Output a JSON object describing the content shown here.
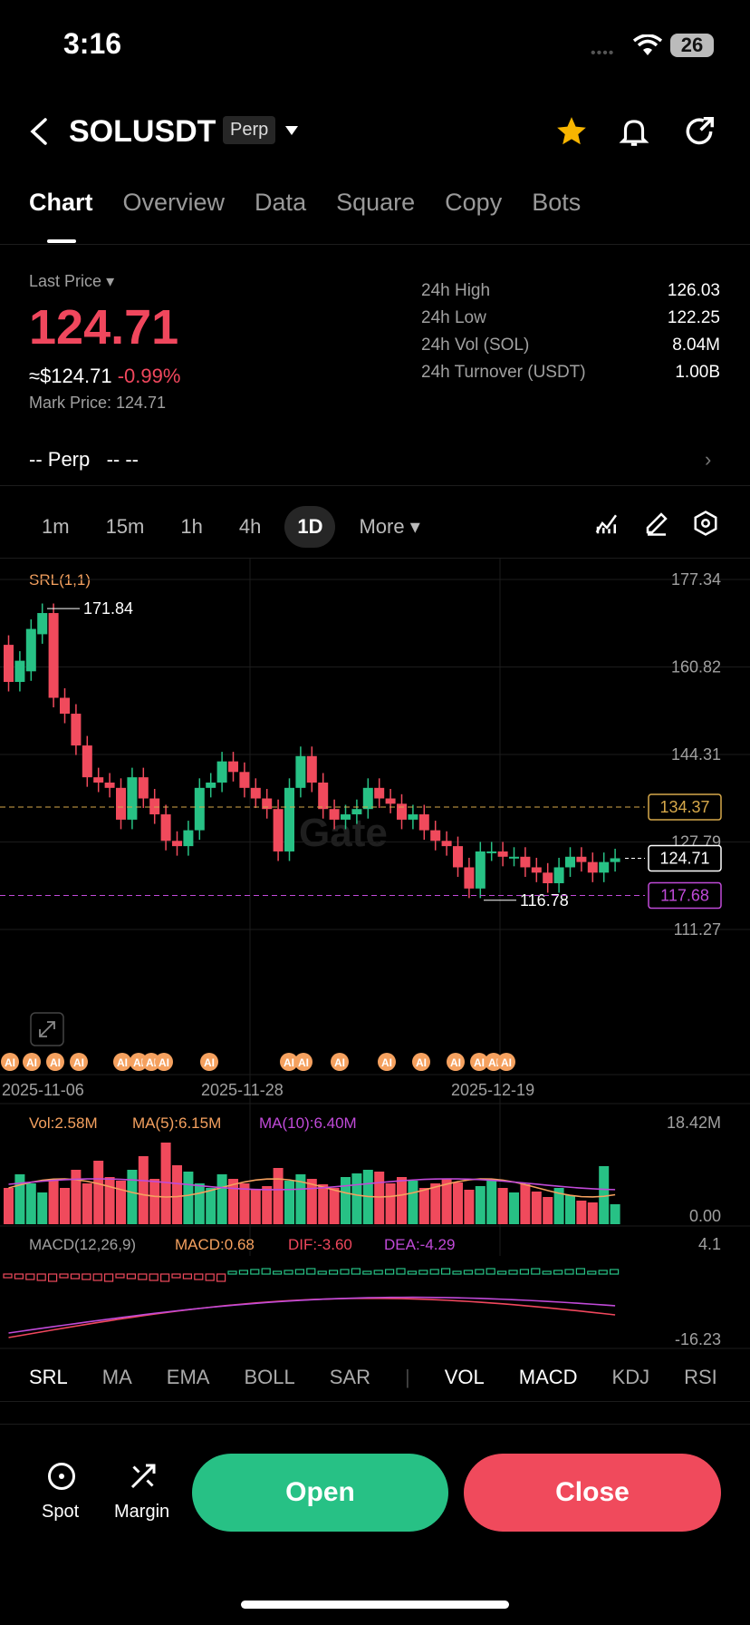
{
  "status": {
    "time": "3:16",
    "battery": "26"
  },
  "header": {
    "symbol": "SOLUSDT",
    "badge": "Perp"
  },
  "tabs": [
    "Chart",
    "Overview",
    "Data",
    "Square",
    "Copy",
    "Bots"
  ],
  "price": {
    "last_label": "Last Price",
    "last": "124.71",
    "usd": "≈$124.71",
    "change": "-0.99%",
    "mark": "Mark Price: 124.71"
  },
  "stats": [
    {
      "label": "24h  High",
      "value": "126.03"
    },
    {
      "label": "24h  Low",
      "value": "122.25"
    },
    {
      "label": "24h  Vol (SOL)",
      "value": "8.04M"
    },
    {
      "label": "24h  Turnover (USDT)",
      "value": "1.00B"
    }
  ],
  "perp_row": {
    "label": "-- Perp",
    "value": "-- --"
  },
  "timeframes": [
    "1m",
    "15m",
    "1h",
    "4h",
    "1D",
    "More"
  ],
  "indicator_label": "SRL(1,1)",
  "watermark": "Gate",
  "y_ticks": [
    "177.34",
    "160.82",
    "144.31",
    "127.79",
    "111.27"
  ],
  "price_markers": {
    "high_label": "171.84",
    "low_label": "116.78",
    "current": "124.71",
    "line1": "134.37",
    "line2": "117.68"
  },
  "date_ticks": [
    "2025-11-06",
    "2025-11-28",
    "2025-12-19"
  ],
  "ai_label": "AI",
  "volume": {
    "vol": "Vol:2.58M",
    "ma5": "MA(5):6.15M",
    "ma10": "MA(10):6.40M",
    "max": "18.42M",
    "min": "0.00"
  },
  "macd": {
    "title": "MACD(12,26,9)",
    "macd": "MACD:0.68",
    "dif": "DIF:-3.60",
    "dea": "DEA:-4.29",
    "max": "4.1",
    "min": "-16.23"
  },
  "bottom_tabs": [
    "SRL",
    "MA",
    "EMA",
    "BOLL",
    "SAR",
    "VOL",
    "MACD",
    "KDJ",
    "RSI"
  ],
  "footer": {
    "spot": "Spot",
    "margin": "Margin",
    "open": "Open",
    "close": "Close"
  },
  "colors": {
    "up": "#27c185",
    "down": "#f04a5c",
    "accent_orange": "#f5a15f",
    "purple": "#c04ad8",
    "dash_orange": "#d6a84a"
  },
  "chart_data": {
    "type": "candlestick",
    "ylim": [
      111.27,
      177.34
    ],
    "candles": [
      {
        "o": 165,
        "c": 158
      },
      {
        "o": 158,
        "c": 162
      },
      {
        "o": 160,
        "c": 168
      },
      {
        "o": 167,
        "c": 171
      },
      {
        "o": 171,
        "c": 155
      },
      {
        "o": 155,
        "c": 152
      },
      {
        "o": 152,
        "c": 146
      },
      {
        "o": 146,
        "c": 140
      },
      {
        "o": 140,
        "c": 139
      },
      {
        "o": 139,
        "c": 138
      },
      {
        "o": 138,
        "c": 132
      },
      {
        "o": 132,
        "c": 140
      },
      {
        "o": 140,
        "c": 136
      },
      {
        "o": 136,
        "c": 133
      },
      {
        "o": 133,
        "c": 128
      },
      {
        "o": 128,
        "c": 127
      },
      {
        "o": 127,
        "c": 130
      },
      {
        "o": 130,
        "c": 138
      },
      {
        "o": 138,
        "c": 139
      },
      {
        "o": 139,
        "c": 143
      },
      {
        "o": 143,
        "c": 141
      },
      {
        "o": 141,
        "c": 138
      },
      {
        "o": 138,
        "c": 136
      },
      {
        "o": 136,
        "c": 134
      },
      {
        "o": 134,
        "c": 126
      },
      {
        "o": 126,
        "c": 138
      },
      {
        "o": 138,
        "c": 144
      },
      {
        "o": 144,
        "c": 139
      },
      {
        "o": 139,
        "c": 134
      },
      {
        "o": 134,
        "c": 132
      },
      {
        "o": 132,
        "c": 133
      },
      {
        "o": 133,
        "c": 134
      },
      {
        "o": 134,
        "c": 138
      },
      {
        "o": 138,
        "c": 136
      },
      {
        "o": 136,
        "c": 135
      },
      {
        "o": 135,
        "c": 132
      },
      {
        "o": 132,
        "c": 133
      },
      {
        "o": 133,
        "c": 130
      },
      {
        "o": 130,
        "c": 128
      },
      {
        "o": 128,
        "c": 127
      },
      {
        "o": 127,
        "c": 123
      },
      {
        "o": 123,
        "c": 119
      },
      {
        "o": 119,
        "c": 126
      },
      {
        "o": 126,
        "c": 126
      },
      {
        "o": 126,
        "c": 125
      },
      {
        "o": 125,
        "c": 125
      },
      {
        "o": 125,
        "c": 123
      },
      {
        "o": 123,
        "c": 122
      },
      {
        "o": 122,
        "c": 120
      },
      {
        "o": 120,
        "c": 123
      },
      {
        "o": 123,
        "c": 125
      },
      {
        "o": 125,
        "c": 124
      },
      {
        "o": 124,
        "c": 122
      },
      {
        "o": 122,
        "c": 124
      },
      {
        "o": 124,
        "c": 124.71
      }
    ]
  }
}
